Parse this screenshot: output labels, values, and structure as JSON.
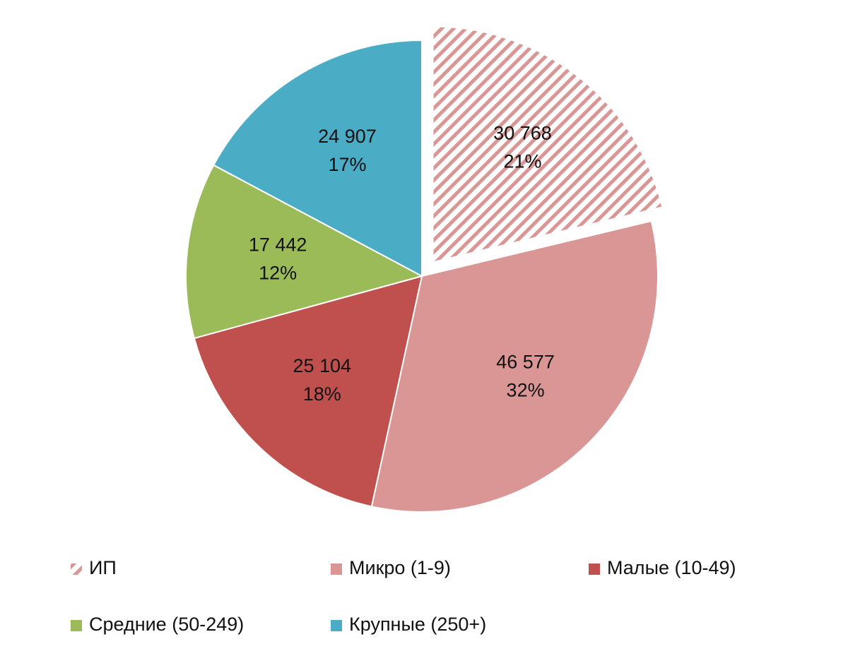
{
  "chart_data": {
    "type": "pie",
    "categories": [
      "ИП",
      "Микро (1-9)",
      "Малые (10-49)",
      "Средние (50-249)",
      "Крупные (250+)"
    ],
    "values": [
      30768,
      46577,
      25104,
      17442,
      24907
    ],
    "value_labels": [
      "30 768",
      "46 577",
      "25 104",
      "17 442",
      "24 907"
    ],
    "percent_labels": [
      "21%",
      "32%",
      "18%",
      "12%",
      "17%"
    ],
    "colors": [
      "#d99694",
      "#d99694",
      "#c0504d",
      "#9bbb59",
      "#4bacc6"
    ],
    "patterns": [
      "hatch",
      "solid",
      "solid",
      "solid",
      "solid"
    ],
    "explode": [
      true,
      false,
      false,
      false,
      false
    ],
    "legend": "bottom"
  }
}
